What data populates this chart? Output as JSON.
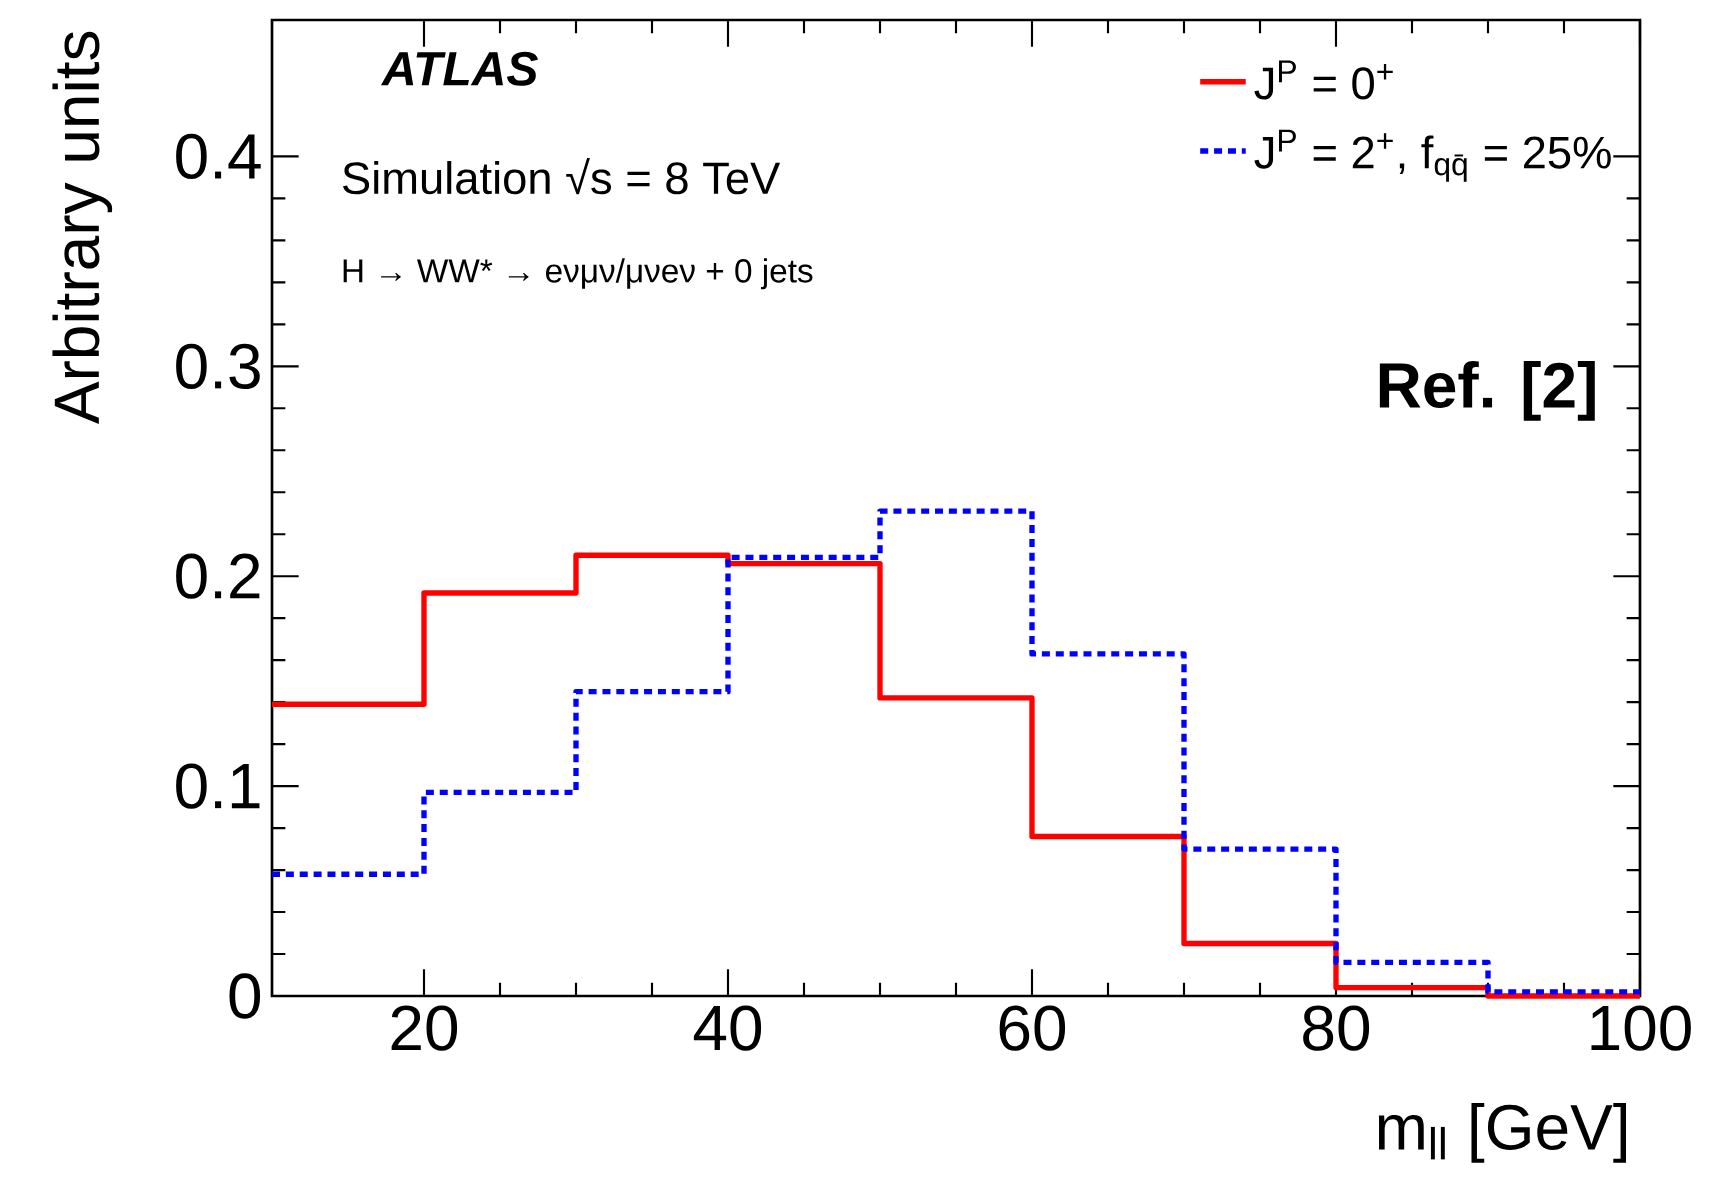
{
  "chart_data": {
    "type": "histogram",
    "xlabel": "m$_{ll}$ [GeV]",
    "ylabel": "Arbitrary units",
    "bins": [
      10,
      20,
      30,
      40,
      50,
      60,
      70,
      80,
      90,
      100
    ],
    "series": [
      {
        "name": "J$^{P}$ = 0$^{+}$",
        "color": "#ff0000",
        "line_style": "solid",
        "values": [
          0.139,
          0.192,
          0.21,
          0.206,
          0.142,
          0.076,
          0.025,
          0.004,
          0.0
        ]
      },
      {
        "name": "J$^{P}$ = 2$^{+}$, f$_{qq̄}$ = 25%",
        "color": "#0000ff",
        "line_style": "dotted",
        "values": [
          0.058,
          0.097,
          0.145,
          0.209,
          0.231,
          0.163,
          0.07,
          0.016,
          0.002
        ]
      }
    ],
    "xlim": [
      10,
      100
    ],
    "ylim": [
      0,
      0.465
    ],
    "xticks": [
      20,
      40,
      60,
      80,
      100
    ],
    "yticks": [
      0,
      0.1,
      0.2,
      0.3,
      0.4
    ],
    "legend": "top right",
    "annotations": [
      "ATLAS",
      "Simulation   √s = 8 TeV",
      "H → WW* → eνμν/μνeν + 0 jets",
      "Ref. [2]"
    ]
  }
}
